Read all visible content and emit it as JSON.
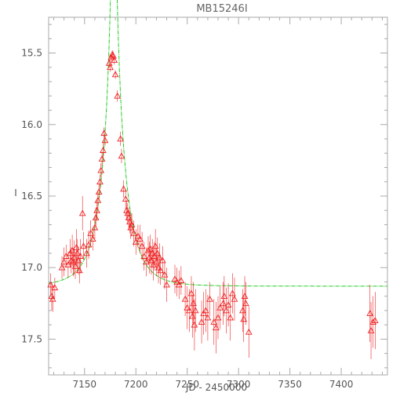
{
  "chart_data": {
    "type": "scatter",
    "title": "MB15246I",
    "xlabel": "JD - 2450000",
    "ylabel": "I",
    "xlim": [
      7115,
      7445
    ],
    "ylim": [
      17.75,
      15.25
    ],
    "y_inverted": true,
    "grid": false,
    "xticks": [
      7150,
      7200,
      7250,
      7300,
      7350,
      7400
    ],
    "yticks": [
      15.5,
      16.0,
      16.5,
      17.0,
      17.5
    ],
    "xtick_labels": [
      "7150",
      "7200",
      "7250",
      "7300",
      "7350",
      "7400"
    ],
    "ytick_labels": [
      "15.5",
      "16.0",
      "16.5",
      "17.0",
      "17.5"
    ],
    "colors": {
      "data": "#ee2222",
      "model": "#22cc22",
      "axes": "#aaaaaa",
      "text": "#555555"
    },
    "marker": "triangle-open",
    "series": [
      {
        "kind": "data",
        "points": [
          {
            "x": 7117,
            "y": 17.12,
            "err": 0.08
          },
          {
            "x": 7118,
            "y": 17.2,
            "err": 0.1
          },
          {
            "x": 7119,
            "y": 17.22,
            "err": 0.09
          },
          {
            "x": 7121,
            "y": 17.14,
            "err": 0.07
          },
          {
            "x": 7128,
            "y": 17.0,
            "err": 0.08
          },
          {
            "x": 7130,
            "y": 16.96,
            "err": 0.1
          },
          {
            "x": 7132,
            "y": 16.92,
            "err": 0.08
          },
          {
            "x": 7134,
            "y": 16.98,
            "err": 0.09
          },
          {
            "x": 7136,
            "y": 16.9,
            "err": 0.1
          },
          {
            "x": 7137,
            "y": 16.95,
            "err": 0.09
          },
          {
            "x": 7138,
            "y": 16.88,
            "err": 0.11
          },
          {
            "x": 7139,
            "y": 16.96,
            "err": 0.1
          },
          {
            "x": 7140,
            "y": 16.93,
            "err": 0.12
          },
          {
            "x": 7141,
            "y": 16.99,
            "err": 0.09
          },
          {
            "x": 7142,
            "y": 16.86,
            "err": 0.13
          },
          {
            "x": 7143,
            "y": 16.9,
            "err": 0.1
          },
          {
            "x": 7144,
            "y": 16.95,
            "err": 0.1
          },
          {
            "x": 7145,
            "y": 17.02,
            "err": 0.09
          },
          {
            "x": 7146,
            "y": 16.92,
            "err": 0.12
          },
          {
            "x": 7148,
            "y": 16.62,
            "err": 0.12
          },
          {
            "x": 7149,
            "y": 16.85,
            "err": 0.1
          },
          {
            "x": 7152,
            "y": 16.9,
            "err": 0.1
          },
          {
            "x": 7154,
            "y": 16.84,
            "err": 0.1
          },
          {
            "x": 7156,
            "y": 16.76,
            "err": 0.09
          },
          {
            "x": 7158,
            "y": 16.8,
            "err": 0.08
          },
          {
            "x": 7160,
            "y": 16.72,
            "err": 0.08
          },
          {
            "x": 7161,
            "y": 16.65,
            "err": 0.07
          },
          {
            "x": 7162,
            "y": 16.6,
            "err": 0.07
          },
          {
            "x": 7163,
            "y": 16.53,
            "err": 0.06
          },
          {
            "x": 7164,
            "y": 16.47,
            "err": 0.06
          },
          {
            "x": 7165,
            "y": 16.4,
            "err": 0.05
          },
          {
            "x": 7166,
            "y": 16.32,
            "err": 0.05
          },
          {
            "x": 7167,
            "y": 16.24,
            "err": 0.05
          },
          {
            "x": 7168,
            "y": 16.18,
            "err": 0.05
          },
          {
            "x": 7169,
            "y": 16.06,
            "err": 0.04
          },
          {
            "x": 7170,
            "y": 16.11,
            "err": 0.04
          },
          {
            "x": 7174,
            "y": 15.57,
            "err": 0.03
          },
          {
            "x": 7175,
            "y": 15.6,
            "err": 0.03
          },
          {
            "x": 7176,
            "y": 15.53,
            "err": 0.03
          },
          {
            "x": 7177,
            "y": 15.51,
            "err": 0.03
          },
          {
            "x": 7178,
            "y": 15.52,
            "err": 0.03
          },
          {
            "x": 7179,
            "y": 15.55,
            "err": 0.03
          },
          {
            "x": 7180,
            "y": 15.65,
            "err": 0.03
          },
          {
            "x": 7182,
            "y": 15.8,
            "err": 0.04
          },
          {
            "x": 7185,
            "y": 16.1,
            "err": 0.05
          },
          {
            "x": 7186,
            "y": 16.22,
            "err": 0.05
          },
          {
            "x": 7188,
            "y": 16.45,
            "err": 0.06
          },
          {
            "x": 7190,
            "y": 16.52,
            "err": 0.07
          },
          {
            "x": 7191,
            "y": 16.6,
            "err": 0.07
          },
          {
            "x": 7192,
            "y": 16.62,
            "err": 0.07
          },
          {
            "x": 7193,
            "y": 16.65,
            "err": 0.07
          },
          {
            "x": 7194,
            "y": 16.68,
            "err": 0.08
          },
          {
            "x": 7195,
            "y": 16.72,
            "err": 0.08
          },
          {
            "x": 7196,
            "y": 16.7,
            "err": 0.08
          },
          {
            "x": 7198,
            "y": 16.76,
            "err": 0.09
          },
          {
            "x": 7200,
            "y": 16.82,
            "err": 0.09
          },
          {
            "x": 7202,
            "y": 16.78,
            "err": 0.08
          },
          {
            "x": 7204,
            "y": 16.8,
            "err": 0.1
          },
          {
            "x": 7206,
            "y": 16.85,
            "err": 0.1
          },
          {
            "x": 7208,
            "y": 16.92,
            "err": 0.1
          },
          {
            "x": 7210,
            "y": 16.96,
            "err": 0.1
          },
          {
            "x": 7212,
            "y": 16.88,
            "err": 0.1
          },
          {
            "x": 7213,
            "y": 16.93,
            "err": 0.11
          },
          {
            "x": 7214,
            "y": 16.87,
            "err": 0.1
          },
          {
            "x": 7215,
            "y": 16.95,
            "err": 0.1
          },
          {
            "x": 7216,
            "y": 16.9,
            "err": 0.1
          },
          {
            "x": 7217,
            "y": 16.98,
            "err": 0.11
          },
          {
            "x": 7218,
            "y": 16.92,
            "err": 0.1
          },
          {
            "x": 7219,
            "y": 16.85,
            "err": 0.12
          },
          {
            "x": 7220,
            "y": 16.96,
            "err": 0.1
          },
          {
            "x": 7221,
            "y": 16.9,
            "err": 0.11
          },
          {
            "x": 7222,
            "y": 17.0,
            "err": 0.11
          },
          {
            "x": 7223,
            "y": 16.93,
            "err": 0.1
          },
          {
            "x": 7224,
            "y": 17.02,
            "err": 0.1
          },
          {
            "x": 7226,
            "y": 16.95,
            "err": 0.1
          },
          {
            "x": 7228,
            "y": 17.05,
            "err": 0.1
          },
          {
            "x": 7230,
            "y": 17.12,
            "err": 0.12
          },
          {
            "x": 7238,
            "y": 17.08,
            "err": 0.1
          },
          {
            "x": 7240,
            "y": 17.1,
            "err": 0.1
          },
          {
            "x": 7242,
            "y": 17.12,
            "err": 0.1
          },
          {
            "x": 7244,
            "y": 17.09,
            "err": 0.1
          },
          {
            "x": 7248,
            "y": 17.22,
            "err": 0.12
          },
          {
            "x": 7250,
            "y": 17.28,
            "err": 0.15
          },
          {
            "x": 7252,
            "y": 17.3,
            "err": 0.15
          },
          {
            "x": 7254,
            "y": 17.18,
            "err": 0.12
          },
          {
            "x": 7255,
            "y": 17.34,
            "err": 0.15
          },
          {
            "x": 7256,
            "y": 17.25,
            "err": 0.15
          },
          {
            "x": 7257,
            "y": 17.4,
            "err": 0.18
          },
          {
            "x": 7258,
            "y": 17.3,
            "err": 0.15
          },
          {
            "x": 7264,
            "y": 17.38,
            "err": 0.15
          },
          {
            "x": 7266,
            "y": 17.32,
            "err": 0.15
          },
          {
            "x": 7268,
            "y": 17.3,
            "err": 0.15
          },
          {
            "x": 7270,
            "y": 17.35,
            "err": 0.16
          },
          {
            "x": 7272,
            "y": 17.22,
            "err": 0.12
          },
          {
            "x": 7276,
            "y": 17.38,
            "err": 0.16
          },
          {
            "x": 7278,
            "y": 17.42,
            "err": 0.18
          },
          {
            "x": 7280,
            "y": 17.35,
            "err": 0.15
          },
          {
            "x": 7282,
            "y": 17.28,
            "err": 0.15
          },
          {
            "x": 7285,
            "y": 17.25,
            "err": 0.15
          },
          {
            "x": 7286,
            "y": 17.2,
            "err": 0.14
          },
          {
            "x": 7288,
            "y": 17.3,
            "err": 0.16
          },
          {
            "x": 7290,
            "y": 17.26,
            "err": 0.15
          },
          {
            "x": 7292,
            "y": 17.35,
            "err": 0.16
          },
          {
            "x": 7294,
            "y": 17.18,
            "err": 0.14
          },
          {
            "x": 7296,
            "y": 17.22,
            "err": 0.15
          },
          {
            "x": 7304,
            "y": 17.3,
            "err": 0.15
          },
          {
            "x": 7305,
            "y": 17.36,
            "err": 0.16
          },
          {
            "x": 7306,
            "y": 17.2,
            "err": 0.14
          },
          {
            "x": 7307,
            "y": 17.25,
            "err": 0.15
          },
          {
            "x": 7310,
            "y": 17.45,
            "err": 0.18
          },
          {
            "x": 7428,
            "y": 17.32,
            "err": 0.2
          },
          {
            "x": 7429,
            "y": 17.44,
            "err": 0.2
          },
          {
            "x": 7431,
            "y": 17.38,
            "err": 0.18
          },
          {
            "x": 7433,
            "y": 17.37,
            "err": 0.2
          }
        ]
      },
      {
        "kind": "model",
        "t0": 7178.5,
        "tE": 22,
        "u0": 0.052,
        "baseline": 17.13,
        "blend_fraction": 1
      }
    ]
  }
}
